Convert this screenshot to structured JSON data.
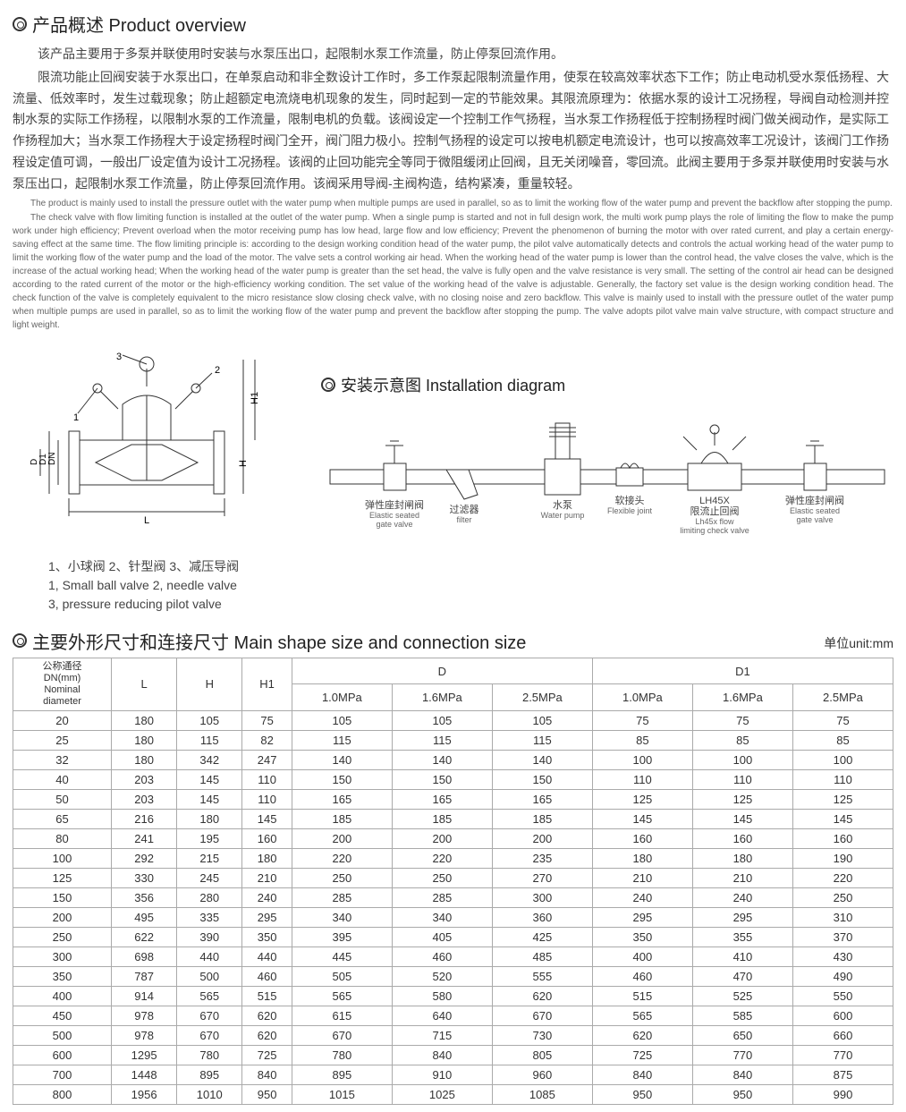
{
  "overview": {
    "title": "产品概述 Product overview",
    "cn1": "该产品主要用于多泵并联使用时安装与水泵压出口，起限制水泵工作流量，防止停泵回流作用。",
    "cn2": "限流功能止回阀安装于水泵出口，在单泵启动和非全数设计工作时，多工作泵起限制流量作用，使泵在较高效率状态下工作；防止电动机受水泵低扬程、大流量、低效率时，发生过载现象；防止超额定电流烧电机现象的发生，同时起到一定的节能效果。其限流原理为：依据水泵的设计工况扬程，导阀自动检测并控制水泵的实际工作扬程，以限制水泵的工作流量，限制电机的负载。该阀设定一个控制工作气扬程，当水泵工作扬程低于控制扬程时阀门做关阀动作，是实际工作扬程加大；当水泵工作扬程大于设定扬程时阀门全开，阀门阻力极小。控制气扬程的设定可以按电机额定电流设计，也可以按高效率工况设计，该阀门工作扬程设定值可调，一般出厂设定值为设计工况扬程。该阀的止回功能完全等同于微阻缓闭止回阀，且无关闭噪音，零回流。此阀主要用于多泵并联使用时安装与水泵压出口，起限制水泵工作流量，防止停泵回流作用。该阀采用导阀-主阀构造，结构紧凑，重量较轻。",
    "en1": "The product is mainly used to install the pressure outlet with the water pump when multiple pumps are used in parallel, so as to limit the working flow of the water pump and prevent the backflow after stopping the pump.",
    "en2": "The check valve with flow limiting function is installed at the outlet of the water pump. When a single pump is started and not in full design work, the multi work pump plays the role of limiting the flow to make the pump work under high efficiency; Prevent overload when the motor receiving pump has low head, large flow and low efficiency; Prevent the phenomenon of burning the motor with over rated current, and play a certain energy-saving effect at the same time. The flow limiting principle is: according to the design working condition head of the water pump, the pilot valve automatically detects and controls the actual working head of the water pump to limit the working flow of the water pump and the load of the motor. The valve sets a control working air head. When the working head of the water pump is lower than the control head, the valve closes the valve, which is the increase of the actual working head; When the working head of the water pump is greater than the set head, the valve is fully open and the valve resistance is very small. The setting of the control air head can be designed according to the rated current of the motor or the high-efficiency working condition. The set value of the working head of the valve is adjustable. Generally, the factory set value is the design working condition head. The check function of the valve is completely equivalent to the micro resistance slow closing check valve, with no closing noise and zero backflow. This valve is mainly used to install with the pressure outlet of the water pump when multiple pumps are used in parallel, so as to limit the working flow of the water pump and prevent the backflow after stopping the pump. The valve adopts pilot valve main valve structure, with compact structure and light weight."
  },
  "diagram": {
    "labels": {
      "n1": "1",
      "n2": "2",
      "n3": "3",
      "L": "L",
      "H": "H",
      "H1": "H1",
      "D": "D",
      "D1": "D1",
      "DN": "DN"
    },
    "caption_cn": "1、小球阀 2、针型阀 3、减压导阀",
    "caption_en1": "1, Small ball valve 2, needle valve",
    "caption_en2": "3, pressure reducing pilot valve"
  },
  "install": {
    "title": "安装示意图 Installation diagram",
    "labels": {
      "gate1_cn": "弹性座封闸阀",
      "gate1_en": "Elastic seated",
      "gate1_en2": "gate valve",
      "filter_cn": "过滤器",
      "filter_en": "filter",
      "pump_cn": "水泵",
      "pump_en": "Water pump",
      "flex_cn": "软接头",
      "flex_en": "Flexible joint",
      "lh_cn": "LH45X",
      "lh_cn2": "限流止回阀",
      "lh_en": "Lh45x flow",
      "lh_en2": "limiting check valve",
      "gate2_cn": "弹性座封闸阀",
      "gate2_en": "Elastic seated",
      "gate2_en2": "gate valve"
    }
  },
  "table": {
    "title": "主要外形尺寸和连接尺寸 Main shape size and connection size",
    "unit": "单位unit:mm",
    "header": {
      "dn_cn": "公称通径",
      "dn_mm": "DN(mm)",
      "dn_en": "Nominal",
      "dn_en2": "diameter",
      "L": "L",
      "H": "H",
      "H1": "H1",
      "D": "D",
      "D1": "D1",
      "p10": "1.0MPa",
      "p16": "1.6MPa",
      "p25": "2.5MPa"
    },
    "rows": [
      [
        "20",
        "180",
        "105",
        "75",
        "105",
        "105",
        "105",
        "75",
        "75",
        "75"
      ],
      [
        "25",
        "180",
        "115",
        "82",
        "115",
        "115",
        "115",
        "85",
        "85",
        "85"
      ],
      [
        "32",
        "180",
        "342",
        "247",
        "140",
        "140",
        "140",
        "100",
        "100",
        "100"
      ],
      [
        "40",
        "203",
        "145",
        "110",
        "150",
        "150",
        "150",
        "110",
        "110",
        "110"
      ],
      [
        "50",
        "203",
        "145",
        "110",
        "165",
        "165",
        "165",
        "125",
        "125",
        "125"
      ],
      [
        "65",
        "216",
        "180",
        "145",
        "185",
        "185",
        "185",
        "145",
        "145",
        "145"
      ],
      [
        "80",
        "241",
        "195",
        "160",
        "200",
        "200",
        "200",
        "160",
        "160",
        "160"
      ],
      [
        "100",
        "292",
        "215",
        "180",
        "220",
        "220",
        "235",
        "180",
        "180",
        "190"
      ],
      [
        "125",
        "330",
        "245",
        "210",
        "250",
        "250",
        "270",
        "210",
        "210",
        "220"
      ],
      [
        "150",
        "356",
        "280",
        "240",
        "285",
        "285",
        "300",
        "240",
        "240",
        "250"
      ],
      [
        "200",
        "495",
        "335",
        "295",
        "340",
        "340",
        "360",
        "295",
        "295",
        "310"
      ],
      [
        "250",
        "622",
        "390",
        "350",
        "395",
        "405",
        "425",
        "350",
        "355",
        "370"
      ],
      [
        "300",
        "698",
        "440",
        "440",
        "445",
        "460",
        "485",
        "400",
        "410",
        "430"
      ],
      [
        "350",
        "787",
        "500",
        "460",
        "505",
        "520",
        "555",
        "460",
        "470",
        "490"
      ],
      [
        "400",
        "914",
        "565",
        "515",
        "565",
        "580",
        "620",
        "515",
        "525",
        "550"
      ],
      [
        "450",
        "978",
        "670",
        "620",
        "615",
        "640",
        "670",
        "565",
        "585",
        "600"
      ],
      [
        "500",
        "978",
        "670",
        "620",
        "670",
        "715",
        "730",
        "620",
        "650",
        "660"
      ],
      [
        "600",
        "1295",
        "780",
        "725",
        "780",
        "840",
        "805",
        "725",
        "770",
        "770"
      ],
      [
        "700",
        "1448",
        "895",
        "840",
        "895",
        "910",
        "960",
        "840",
        "840",
        "875"
      ],
      [
        "800",
        "1956",
        "1010",
        "950",
        "1015",
        "1025",
        "1085",
        "950",
        "950",
        "990"
      ]
    ]
  }
}
